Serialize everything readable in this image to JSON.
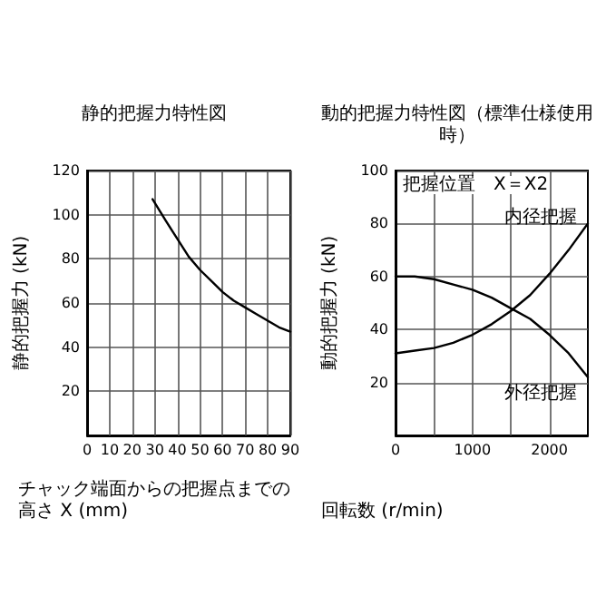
{
  "chart_data": [
    {
      "type": "line",
      "title": "静的把握力特性図",
      "xlabel": "チャック端面からの把握点までの高さ X (mm)",
      "ylabel": "静的把握力 (kN)",
      "x": [
        29,
        35,
        40,
        45,
        50,
        55,
        60,
        65,
        70,
        75,
        80,
        85,
        90
      ],
      "series": [
        {
          "color": "#000000",
          "values": [
            107,
            97,
            89,
            81,
            75,
            70,
            65,
            61,
            58,
            55,
            52,
            49,
            47
          ]
        }
      ],
      "xlim": [
        0,
        90
      ],
      "xticks": [
        0,
        10,
        20,
        30,
        40,
        50,
        60,
        70,
        80,
        90
      ],
      "ylim": [
        0,
        120
      ],
      "yticks": [
        20,
        40,
        60,
        80,
        100,
        120
      ],
      "grid": true,
      "legend": false,
      "marker": "none",
      "line_style": "solid"
    },
    {
      "type": "line",
      "title": "動的把握力特性図（標準仕様使用時）",
      "xlabel": "回転数 (r/min)",
      "ylabel": "動的把握力 (kN)",
      "annotations": [
        "把握位置　X＝X2"
      ],
      "x": [
        0,
        250,
        500,
        750,
        1000,
        1250,
        1500,
        1750,
        2000,
        2250,
        2500
      ],
      "series": [
        {
          "name": "内径把握",
          "color": "#000000",
          "values": [
            31,
            32,
            33,
            35,
            38,
            42,
            47,
            53,
            61,
            70,
            80
          ]
        },
        {
          "name": "外径把握",
          "color": "#000000",
          "values": [
            60,
            60,
            59,
            57,
            55,
            52,
            48,
            44,
            38,
            31,
            22
          ]
        }
      ],
      "xlim": [
        0,
        2500
      ],
      "xticks": [
        0,
        {
          "value": 500,
          "label": null
        },
        1000,
        {
          "value": 1500,
          "label": null
        },
        2000
      ],
      "ylim": [
        0,
        100
      ],
      "yticks": [
        20,
        40,
        60,
        80,
        100
      ],
      "grid": true,
      "legend": false,
      "marker": "none",
      "line_style": "solid"
    }
  ]
}
